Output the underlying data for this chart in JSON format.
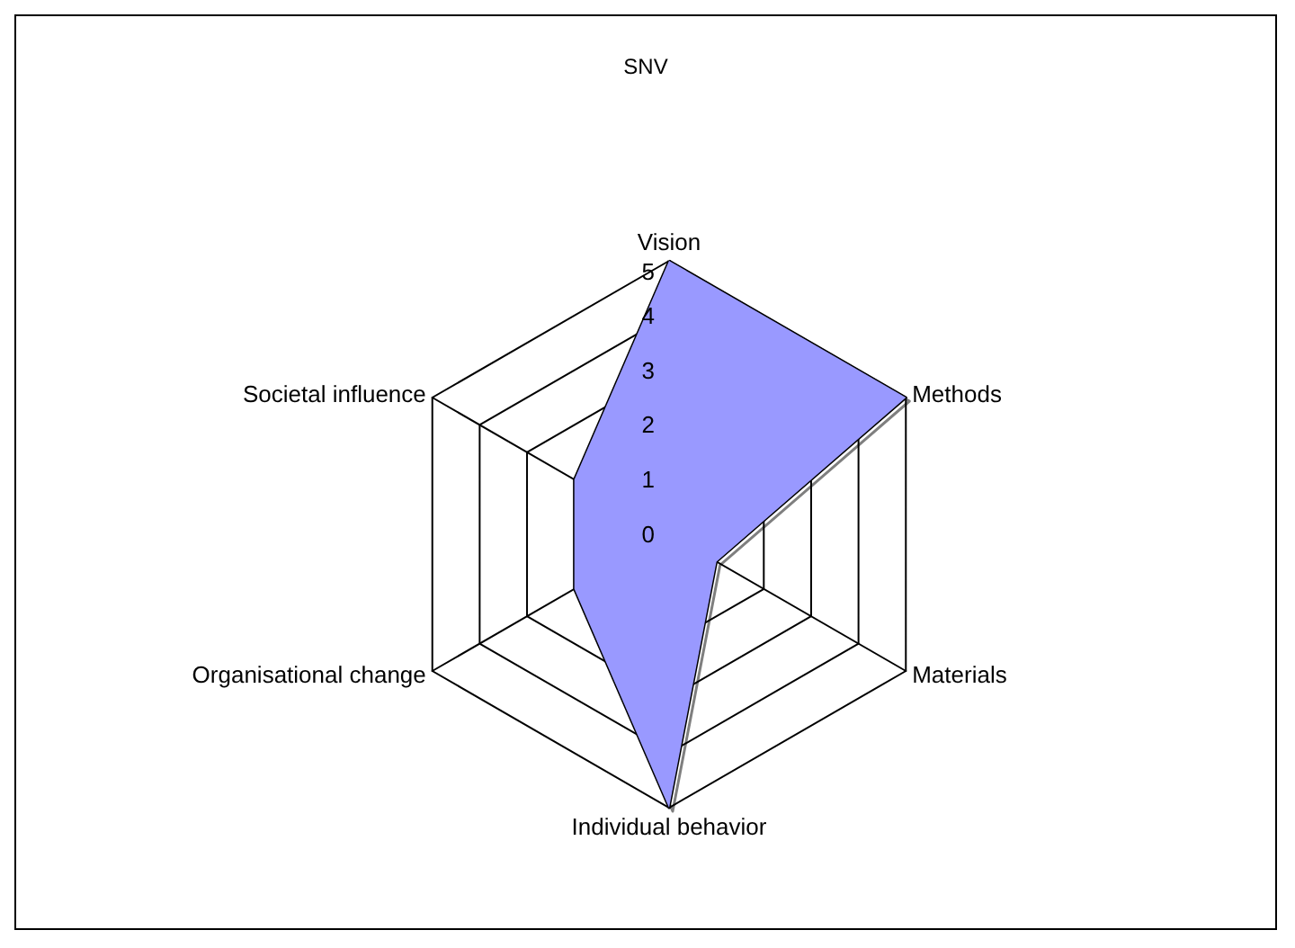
{
  "chart_data": {
    "type": "radar",
    "title": "SNV",
    "categories": [
      "Vision",
      "Methods",
      "Materials",
      "Individual behavior",
      "Organisational change",
      "Societal influence"
    ],
    "series": [
      {
        "color": "#9999ff",
        "values": [
          5,
          5,
          1,
          5,
          2,
          2
        ]
      }
    ],
    "ylim": [
      0,
      5
    ],
    "yticks": [
      0,
      1,
      2,
      3,
      4,
      5
    ],
    "grid": true,
    "marker": "none"
  }
}
